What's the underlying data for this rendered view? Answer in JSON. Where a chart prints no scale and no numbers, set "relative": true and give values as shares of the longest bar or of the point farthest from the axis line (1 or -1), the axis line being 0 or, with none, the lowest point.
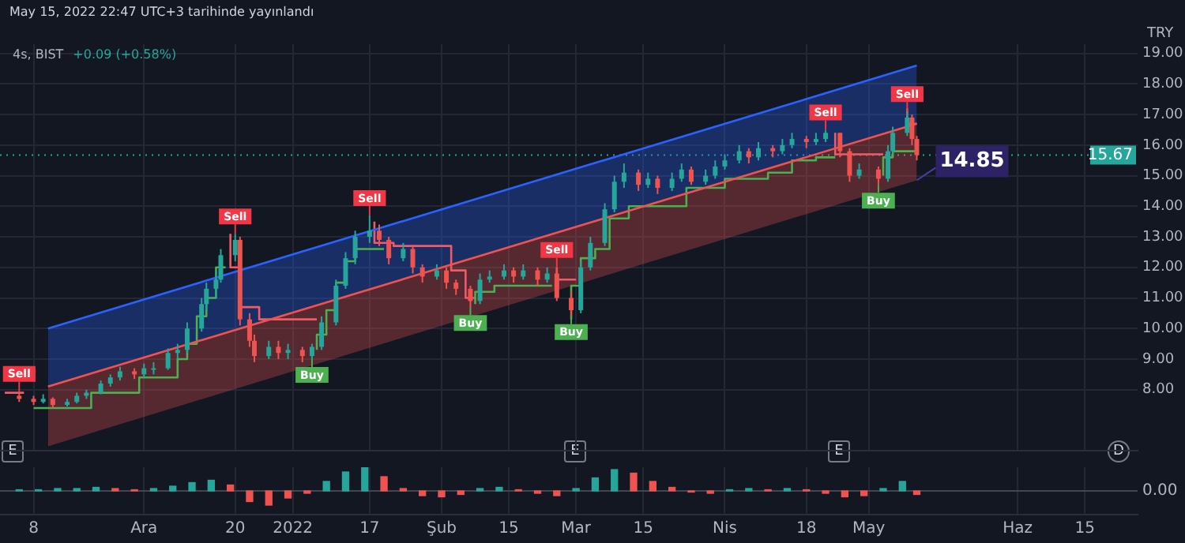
{
  "chart_data": [
    {
      "type": "candlestick",
      "title": "4s, BIST",
      "subtitle": "+0.09 (+0.58%)",
      "ylabel": "TRY",
      "annotations": [
        "May 15, 2022 22:47 UTC+3 tarihinde yayınlandı",
        {
          "text": "Sell",
          "x": "2021-11-05",
          "y": 7.95
        },
        {
          "text": "Sell",
          "x": "2021-12-20",
          "y": 13.1
        },
        {
          "text": "Buy",
          "x": "2022-01-05",
          "y": 9.0
        },
        {
          "text": "Sell",
          "x": "2022-01-17",
          "y": 13.7
        },
        {
          "text": "Buy",
          "x": "2022-02-07",
          "y": 10.7
        },
        {
          "text": "Sell",
          "x": "2022-02-25",
          "y": 12.0
        },
        {
          "text": "Buy",
          "x": "2022-02-28",
          "y": 10.4
        },
        {
          "text": "Sell",
          "x": "2022-04-22",
          "y": 16.5
        },
        {
          "text": "Buy",
          "x": "2022-05-03",
          "y": 14.7
        },
        {
          "text": "Sell",
          "x": "2022-05-09",
          "y": 17.1
        },
        {
          "text": "14.85",
          "x": "2022-05-11",
          "y": 14.85
        },
        "E",
        "E",
        "E",
        "D"
      ],
      "x": [
        "2021-11-05",
        "2021-11-08",
        "2021-11-10",
        "2021-11-12",
        "2021-11-15",
        "2021-11-17",
        "2021-11-19",
        "2021-11-22",
        "2021-11-24",
        "2021-11-26",
        "2021-11-29",
        "2021-12-01",
        "2021-12-03",
        "2021-12-06",
        "2021-12-08",
        "2021-12-10",
        "2021-12-13",
        "2021-12-14",
        "2021-12-16",
        "2021-12-17",
        "2021-12-20",
        "2021-12-21",
        "2021-12-23",
        "2021-12-24",
        "2021-12-27",
        "2021-12-29",
        "2021-12-31",
        "2022-01-03",
        "2022-01-05",
        "2022-01-07",
        "2022-01-10",
        "2022-01-12",
        "2022-01-14",
        "2022-01-17",
        "2022-01-19",
        "2022-01-21",
        "2022-01-24",
        "2022-01-26",
        "2022-01-28",
        "2022-01-31",
        "2022-02-02",
        "2022-02-04",
        "2022-02-07",
        "2022-02-09",
        "2022-02-11",
        "2022-02-14",
        "2022-02-16",
        "2022-02-18",
        "2022-02-21",
        "2022-02-23",
        "2022-02-25",
        "2022-02-28",
        "2022-03-02",
        "2022-03-04",
        "2022-03-07",
        "2022-03-09",
        "2022-03-11",
        "2022-03-14",
        "2022-03-16",
        "2022-03-18",
        "2022-03-21",
        "2022-03-23",
        "2022-03-25",
        "2022-03-28",
        "2022-03-30",
        "2022-04-01",
        "2022-04-04",
        "2022-04-06",
        "2022-04-08",
        "2022-04-11",
        "2022-04-13",
        "2022-04-15",
        "2022-04-18",
        "2022-04-20",
        "2022-04-22",
        "2022-04-25",
        "2022-04-27",
        "2022-04-29",
        "2022-05-03",
        "2022-05-05",
        "2022-05-06",
        "2022-05-09",
        "2022-05-10",
        "2022-05-11"
      ],
      "ohlc": [
        [
          7.8,
          7.95,
          7.6,
          7.7
        ],
        [
          7.7,
          7.8,
          7.5,
          7.6
        ],
        [
          7.6,
          7.85,
          7.55,
          7.7
        ],
        [
          7.7,
          7.75,
          7.4,
          7.5
        ],
        [
          7.5,
          7.7,
          7.45,
          7.6
        ],
        [
          7.6,
          7.9,
          7.55,
          7.8
        ],
        [
          7.8,
          8.0,
          7.7,
          7.9
        ],
        [
          7.9,
          8.3,
          7.85,
          8.2
        ],
        [
          8.2,
          8.5,
          8.1,
          8.4
        ],
        [
          8.4,
          8.75,
          8.3,
          8.6
        ],
        [
          8.6,
          8.7,
          8.35,
          8.5
        ],
        [
          8.5,
          8.85,
          8.4,
          8.7
        ],
        [
          8.7,
          8.9,
          8.5,
          8.7
        ],
        [
          8.7,
          9.35,
          8.65,
          9.2
        ],
        [
          9.2,
          9.5,
          9.0,
          9.3
        ],
        [
          9.3,
          10.2,
          9.2,
          10.0
        ],
        [
          10.0,
          11.0,
          9.9,
          10.8
        ],
        [
          10.8,
          11.5,
          10.6,
          11.3
        ],
        [
          11.3,
          11.9,
          11.0,
          11.6
        ],
        [
          11.6,
          12.6,
          11.5,
          12.4
        ],
        [
          12.4,
          13.1,
          12.2,
          12.9
        ],
        [
          12.9,
          13.0,
          10.1,
          10.3
        ],
        [
          10.3,
          10.5,
          9.4,
          9.6
        ],
        [
          9.6,
          9.8,
          8.9,
          9.1
        ],
        [
          9.1,
          9.6,
          9.0,
          9.4
        ],
        [
          9.4,
          9.6,
          9.0,
          9.2
        ],
        [
          9.2,
          9.5,
          9.0,
          9.3
        ],
        [
          9.3,
          9.4,
          8.9,
          9.1
        ],
        [
          9.1,
          9.5,
          9.0,
          9.4
        ],
        [
          9.4,
          10.4,
          9.3,
          10.2
        ],
        [
          10.2,
          11.6,
          10.1,
          11.4
        ],
        [
          11.4,
          12.5,
          11.3,
          12.3
        ],
        [
          12.3,
          13.2,
          12.1,
          13.0
        ],
        [
          13.0,
          13.7,
          12.8,
          13.2
        ],
        [
          13.2,
          13.4,
          12.7,
          12.9
        ],
        [
          12.9,
          13.0,
          12.1,
          12.3
        ],
        [
          12.3,
          12.8,
          12.2,
          12.6
        ],
        [
          12.6,
          12.7,
          11.8,
          12.0
        ],
        [
          12.0,
          12.1,
          11.5,
          11.7
        ],
        [
          11.7,
          12.1,
          11.6,
          11.9
        ],
        [
          11.9,
          12.0,
          11.3,
          11.5
        ],
        [
          11.5,
          11.6,
          11.1,
          11.3
        ],
        [
          11.3,
          11.4,
          10.7,
          10.9
        ],
        [
          10.9,
          11.8,
          10.8,
          11.6
        ],
        [
          11.6,
          11.9,
          11.5,
          11.7
        ],
        [
          11.7,
          12.1,
          11.6,
          11.9
        ],
        [
          11.9,
          12.0,
          11.5,
          11.7
        ],
        [
          11.7,
          12.1,
          11.6,
          11.9
        ],
        [
          11.9,
          12.0,
          11.4,
          11.6
        ],
        [
          11.6,
          12.0,
          11.5,
          11.8
        ],
        [
          11.8,
          12.0,
          10.9,
          11.0
        ],
        [
          11.0,
          11.2,
          10.4,
          10.6
        ],
        [
          10.6,
          12.2,
          10.5,
          12.0
        ],
        [
          12.0,
          13.0,
          11.9,
          12.8
        ],
        [
          12.8,
          14.1,
          12.7,
          13.9
        ],
        [
          13.9,
          15.0,
          13.8,
          14.8
        ],
        [
          14.8,
          15.4,
          14.6,
          15.1
        ],
        [
          15.1,
          15.2,
          14.5,
          14.7
        ],
        [
          14.7,
          15.1,
          14.6,
          14.9
        ],
        [
          14.9,
          15.0,
          14.4,
          14.6
        ],
        [
          14.6,
          15.1,
          14.5,
          14.9
        ],
        [
          14.9,
          15.4,
          14.8,
          15.2
        ],
        [
          15.2,
          15.3,
          14.7,
          14.8
        ],
        [
          14.8,
          15.2,
          14.7,
          15.0
        ],
        [
          15.0,
          15.5,
          14.9,
          15.3
        ],
        [
          15.3,
          15.7,
          15.2,
          15.5
        ],
        [
          15.5,
          16.0,
          15.4,
          15.8
        ],
        [
          15.8,
          15.9,
          15.4,
          15.6
        ],
        [
          15.6,
          16.1,
          15.5,
          15.9
        ],
        [
          15.9,
          16.0,
          15.6,
          15.8
        ],
        [
          15.8,
          16.2,
          15.7,
          16.0
        ],
        [
          16.0,
          16.4,
          15.9,
          16.2
        ],
        [
          16.2,
          16.3,
          15.9,
          16.1
        ],
        [
          16.1,
          16.4,
          16.0,
          16.2
        ],
        [
          16.2,
          16.5,
          16.1,
          16.4
        ],
        [
          16.4,
          16.4,
          15.6,
          15.8
        ],
        [
          15.8,
          15.9,
          14.8,
          15.0
        ],
        [
          15.0,
          15.4,
          14.9,
          15.2
        ],
        [
          15.2,
          15.3,
          14.7,
          14.9
        ],
        [
          14.9,
          16.0,
          14.8,
          15.8
        ],
        [
          15.8,
          16.6,
          15.7,
          16.4
        ],
        [
          16.4,
          17.1,
          16.3,
          16.9
        ],
        [
          16.9,
          17.0,
          16.0,
          16.2
        ],
        [
          16.2,
          16.3,
          15.5,
          15.67
        ]
      ],
      "series": [
        {
          "type": "line",
          "color": "#2962ff",
          "x": [
            "2021-11-11",
            "2022-05-11"
          ],
          "values": [
            10.0,
            18.6
          ],
          "upper": [
            10.0,
            18.6
          ],
          "lower": [
            8.1,
            16.7
          ]
        },
        {
          "type": "line",
          "color": "#ef5350",
          "x": [
            "2021-11-11",
            "2022-05-11"
          ],
          "values": [
            8.1,
            16.7
          ],
          "upper": [
            8.1,
            16.7
          ],
          "lower": [
            6.15,
            14.85
          ]
        },
        {
          "type": "step",
          "color": "#4caf50",
          "x": [
            "2021-11-08",
            "2021-11-20",
            "2021-11-22",
            "2021-11-30",
            "2021-12-01",
            "2021-12-08",
            "2021-12-10",
            "2021-12-12",
            "2021-12-14",
            "2021-12-16",
            "2021-12-18",
            "2021-12-19",
            "2022-01-06",
            "2022-01-08",
            "2022-01-10",
            "2022-01-12",
            "2022-01-14",
            "2022-01-20",
            "2022-01-21",
            "2022-02-08",
            "2022-02-12",
            "2022-02-24",
            "2022-02-25",
            "2022-02-28",
            "2022-03-02",
            "2022-03-05",
            "2022-03-08",
            "2022-03-12",
            "2022-03-24",
            "2022-04-01",
            "2022-04-10",
            "2022-04-15",
            "2022-04-20",
            "2022-04-24",
            "2022-04-25",
            "2022-05-04",
            "2022-05-06",
            "2022-05-11"
          ],
          "values": [
            7.4,
            7.4,
            7.9,
            7.9,
            8.4,
            8.4,
            9.0,
            9.5,
            10.4,
            11.0,
            12.0,
            null,
            9.3,
            9.8,
            10.6,
            11.5,
            12.2,
            12.6,
            null,
            10.8,
            11.2,
            11.4,
            null,
            10.3,
            11.4,
            12.3,
            12.6,
            13.6,
            14.0,
            14.6,
            14.9,
            15.1,
            15.5,
            15.6,
            null,
            15.0,
            15.6,
            15.8
          ]
        },
        {
          "type": "step",
          "color": "#f05b6a",
          "x": [
            "2021-11-02",
            "2021-11-06",
            "2021-11-07",
            "2021-12-19",
            "2021-12-21",
            "2021-12-25",
            "2021-12-30",
            "2022-01-06",
            "2022-01-07",
            "2022-01-18",
            "2022-01-22",
            "2022-02-03",
            "2022-02-06",
            "2022-02-08",
            "2022-02-09",
            "2022-02-25",
            "2022-02-27",
            "2022-03-01",
            "2022-03-02",
            "2022-04-24",
            "2022-04-26",
            "2022-05-04",
            "2022-05-05",
            "2022-05-09",
            "2022-05-11"
          ],
          "values": [
            7.9,
            7.9,
            null,
            13.1,
            12.0,
            10.7,
            10.3,
            10.3,
            null,
            13.5,
            12.8,
            12.7,
            11.9,
            11.0,
            null,
            12.0,
            11.6,
            11.6,
            null,
            16.4,
            15.7,
            15.7,
            null,
            17.2,
            16.7
          ]
        }
      ],
      "xlim": [
        "2021-11-01",
        "2022-06-26"
      ],
      "xticks": [
        {
          "value": "2021-11-08",
          "label": null
        },
        {
          "value": "2021-12-01",
          "label": null
        },
        {
          "value": "2021-12-20",
          "label": null
        },
        {
          "value": "2022-01-01",
          "label": null
        },
        {
          "value": "2022-01-17",
          "label": null
        },
        {
          "value": "2022-02-01",
          "label": null
        },
        {
          "value": "2022-02-15",
          "label": null
        },
        {
          "value": "2022-03-01",
          "label": null
        },
        {
          "value": "2022-03-15",
          "label": null
        },
        {
          "value": "2022-04-01",
          "label": null
        },
        {
          "value": "2022-04-18",
          "label": null
        },
        {
          "value": "2022-05-01",
          "label": null
        },
        {
          "value": "2022-06-01",
          "label": null
        },
        {
          "value": "2022-06-15",
          "label": null
        }
      ],
      "ylim": [
        6.0,
        19.3
      ],
      "yticks": [
        {
          "value": 8,
          "label": "8.00"
        },
        {
          "value": 9,
          "label": "9.00"
        },
        {
          "value": 10,
          "label": "10.00"
        },
        {
          "value": 11,
          "label": "11.00"
        },
        {
          "value": 12,
          "label": "12.00"
        },
        {
          "value": 13,
          "label": "13.00"
        },
        {
          "value": 14,
          "label": "14.00"
        },
        {
          "value": 15,
          "label": "15.00"
        },
        {
          "value": 16,
          "label": "16.00"
        },
        {
          "value": 17,
          "label": "17.00"
        },
        {
          "value": 18,
          "label": "18.00"
        },
        {
          "value": 19,
          "label": "19.00"
        }
      ],
      "ref_lines": [
        {
          "axis": "y",
          "value": 15.67,
          "label": "15.67",
          "color": "#26a69a",
          "line_style": "dotted"
        }
      ],
      "grid": true,
      "tick_labels": "y"
    },
    {
      "type": "bar",
      "relative": true,
      "x": [
        "2021-11-05",
        "2021-11-09",
        "2021-11-13",
        "2021-11-17",
        "2021-11-21",
        "2021-11-25",
        "2021-11-29",
        "2021-12-03",
        "2021-12-07",
        "2021-12-11",
        "2021-12-15",
        "2021-12-19",
        "2021-12-23",
        "2021-12-27",
        "2021-12-31",
        "2022-01-04",
        "2022-01-08",
        "2022-01-12",
        "2022-01-16",
        "2022-01-20",
        "2022-01-24",
        "2022-01-28",
        "2022-02-01",
        "2022-02-05",
        "2022-02-09",
        "2022-02-13",
        "2022-02-17",
        "2022-02-21",
        "2022-02-25",
        "2022-03-01",
        "2022-03-05",
        "2022-03-09",
        "2022-03-13",
        "2022-03-17",
        "2022-03-21",
        "2022-03-25",
        "2022-03-29",
        "2022-04-02",
        "2022-04-06",
        "2022-04-10",
        "2022-04-14",
        "2022-04-18",
        "2022-04-22",
        "2022-04-26",
        "2022-04-30",
        "2022-05-04",
        "2022-05-08",
        "2022-05-11"
      ],
      "values": [
        0.05,
        0.05,
        0.1,
        0.1,
        0.15,
        0.1,
        0.05,
        0.1,
        0.2,
        0.35,
        0.45,
        0.25,
        -0.45,
        -0.6,
        -0.3,
        -0.1,
        0.4,
        0.8,
        1.0,
        0.6,
        0.1,
        -0.2,
        -0.25,
        -0.15,
        0.1,
        0.15,
        0.05,
        -0.1,
        -0.2,
        0.1,
        0.55,
        0.9,
        0.75,
        0.4,
        0.15,
        -0.05,
        -0.1,
        0.05,
        0.1,
        0.05,
        0.1,
        0.05,
        -0.1,
        -0.25,
        -0.2,
        0.1,
        0.4,
        -0.15
      ],
      "colors": [
        "#26a69a",
        "#26a69a",
        "#26a69a",
        "#26a69a",
        "#26a69a",
        "#ef5350",
        "#ef5350",
        "#26a69a",
        "#26a69a",
        "#26a69a",
        "#26a69a",
        "#ef5350",
        "#ef5350",
        "#ef5350",
        "#ef5350",
        "#ef5350",
        "#26a69a",
        "#26a69a",
        "#26a69a",
        "#ef5350",
        "#ef5350",
        "#ef5350",
        "#ef5350",
        "#ef5350",
        "#26a69a",
        "#26a69a",
        "#ef5350",
        "#ef5350",
        "#ef5350",
        "#26a69a",
        "#26a69a",
        "#26a69a",
        "#ef5350",
        "#ef5350",
        "#ef5350",
        "#ef5350",
        "#ef5350",
        "#26a69a",
        "#26a69a",
        "#ef5350",
        "#26a69a",
        "#ef5350",
        "#ef5350",
        "#ef5350",
        "#ef5350",
        "#26a69a",
        "#26a69a",
        "#ef5350"
      ],
      "xlim": [
        "2021-11-01",
        "2022-06-26"
      ],
      "xticks": [
        {
          "value": "2021-11-08",
          "label": "8"
        },
        {
          "value": "2021-12-01",
          "label": "Ara"
        },
        {
          "value": "2021-12-20",
          "label": "20"
        },
        {
          "value": "2022-01-01",
          "label": "2022"
        },
        {
          "value": "2022-01-17",
          "label": "17"
        },
        {
          "value": "2022-02-01",
          "label": "Şub"
        },
        {
          "value": "2022-02-15",
          "label": "15"
        },
        {
          "value": "2022-03-01",
          "label": "Mar"
        },
        {
          "value": "2022-03-15",
          "label": "15"
        },
        {
          "value": "2022-04-01",
          "label": "Nis"
        },
        {
          "value": "2022-04-18",
          "label": "18"
        },
        {
          "value": "2022-05-01",
          "label": "May"
        },
        {
          "value": "2022-06-01",
          "label": "Haz"
        },
        {
          "value": "2022-06-15",
          "label": "15"
        }
      ],
      "ref_lines": [
        {
          "axis": "y",
          "value": 0,
          "label": "0.00",
          "color": "#434651"
        }
      ],
      "grid": "x",
      "tick_labels": "x"
    }
  ]
}
